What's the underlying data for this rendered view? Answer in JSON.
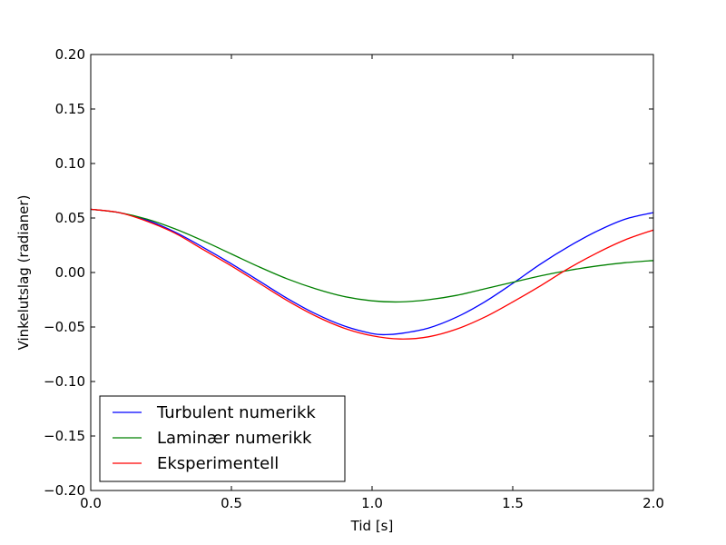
{
  "chart_data": {
    "type": "line",
    "title": "",
    "xlabel": "Tid [s]",
    "ylabel": "Vinkelutslag (radianer)",
    "xlim": [
      0.0,
      2.0
    ],
    "ylim": [
      -0.2,
      0.2
    ],
    "x_ticks": [
      0.0,
      0.5,
      1.0,
      1.5,
      2.0
    ],
    "x_tick_labels": [
      "0.0",
      "0.5",
      "1.0",
      "1.5",
      "2.0"
    ],
    "y_ticks": [
      -0.2,
      -0.15,
      -0.1,
      -0.05,
      0.0,
      0.05,
      0.1,
      0.15,
      0.2
    ],
    "y_tick_labels": [
      "−0.20",
      "−0.15",
      "−0.10",
      "−0.05",
      "0.00",
      "0.05",
      "0.10",
      "0.15",
      "0.20"
    ],
    "grid": false,
    "legend_position": "lower-left",
    "series": [
      {
        "name": "Turbulent numerikk",
        "color": "#0000ff",
        "x": [
          0.0,
          0.1,
          0.2,
          0.3,
          0.4,
          0.5,
          0.6,
          0.7,
          0.8,
          0.9,
          1.0,
          1.05,
          1.1,
          1.2,
          1.3,
          1.4,
          1.5,
          1.6,
          1.7,
          1.8,
          1.9,
          2.0
        ],
        "y": [
          0.058,
          0.055,
          0.048,
          0.037,
          0.023,
          0.008,
          -0.008,
          -0.024,
          -0.038,
          -0.049,
          -0.056,
          -0.057,
          -0.056,
          -0.051,
          -0.041,
          -0.027,
          -0.01,
          0.008,
          0.024,
          0.038,
          0.049,
          0.055
        ]
      },
      {
        "name": "Laminær numerikk",
        "color": "#008000",
        "x": [
          0.0,
          0.1,
          0.2,
          0.3,
          0.4,
          0.5,
          0.6,
          0.7,
          0.8,
          0.9,
          1.0,
          1.1,
          1.2,
          1.3,
          1.4,
          1.5,
          1.6,
          1.7,
          1.8,
          1.9,
          2.0
        ],
        "y": [
          0.058,
          0.055,
          0.049,
          0.04,
          0.029,
          0.017,
          0.005,
          -0.006,
          -0.015,
          -0.022,
          -0.026,
          -0.027,
          -0.025,
          -0.021,
          -0.015,
          -0.009,
          -0.003,
          0.002,
          0.006,
          0.009,
          0.011
        ]
      },
      {
        "name": "Eksperimentell",
        "color": "#ff0000",
        "x": [
          0.0,
          0.1,
          0.2,
          0.3,
          0.4,
          0.5,
          0.6,
          0.7,
          0.8,
          0.9,
          1.0,
          1.1,
          1.2,
          1.3,
          1.4,
          1.5,
          1.6,
          1.7,
          1.8,
          1.9,
          2.0
        ],
        "y": [
          0.058,
          0.055,
          0.047,
          0.036,
          0.021,
          0.006,
          -0.01,
          -0.026,
          -0.04,
          -0.051,
          -0.058,
          -0.061,
          -0.059,
          -0.052,
          -0.041,
          -0.027,
          -0.012,
          0.004,
          0.018,
          0.03,
          0.039
        ]
      }
    ]
  }
}
